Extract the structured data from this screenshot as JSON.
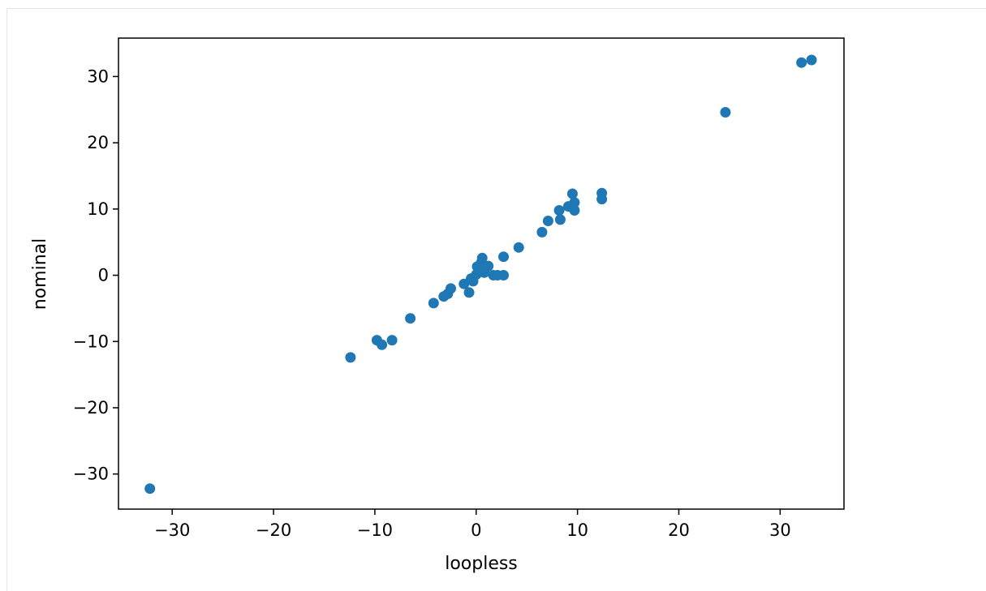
{
  "chart_data": {
    "type": "scatter",
    "title": "",
    "xlabel": "loopless",
    "ylabel": "nominal",
    "xlim": [
      -35.3,
      36.3
    ],
    "ylim": [
      -35.3,
      35.8
    ],
    "xticks": [
      -30,
      -20,
      -10,
      0,
      10,
      20,
      30
    ],
    "yticks": [
      -30,
      -20,
      -10,
      0,
      10,
      20,
      30
    ],
    "xtick_labels": [
      "−30",
      "−20",
      "−10",
      "0",
      "10",
      "20",
      "30"
    ],
    "ytick_labels": [
      "−30",
      "−20",
      "−10",
      "0",
      "10",
      "20",
      "30"
    ],
    "grid": false,
    "marker_color": "#1f77b4",
    "points": [
      {
        "x": -32.2,
        "y": -32.2
      },
      {
        "x": -12.4,
        "y": -12.4
      },
      {
        "x": -9.8,
        "y": -9.8
      },
      {
        "x": -9.3,
        "y": -10.5
      },
      {
        "x": -8.3,
        "y": -9.8
      },
      {
        "x": -6.5,
        "y": -6.5
      },
      {
        "x": -4.2,
        "y": -4.2
      },
      {
        "x": -3.2,
        "y": -3.2
      },
      {
        "x": -2.8,
        "y": -2.8
      },
      {
        "x": -2.5,
        "y": -2.0
      },
      {
        "x": -1.2,
        "y": -1.3
      },
      {
        "x": -0.7,
        "y": -2.6
      },
      {
        "x": -0.5,
        "y": -0.5
      },
      {
        "x": -0.3,
        "y": -0.9
      },
      {
        "x": 0.0,
        "y": 0.1
      },
      {
        "x": 0.1,
        "y": 1.3
      },
      {
        "x": 0.3,
        "y": 0.6
      },
      {
        "x": 0.5,
        "y": 1.9
      },
      {
        "x": 0.6,
        "y": 2.6
      },
      {
        "x": 0.8,
        "y": 0.4
      },
      {
        "x": 1.0,
        "y": 1.2
      },
      {
        "x": 1.2,
        "y": 1.4
      },
      {
        "x": 1.7,
        "y": 0.0
      },
      {
        "x": 2.1,
        "y": 0.0
      },
      {
        "x": 2.7,
        "y": 2.8
      },
      {
        "x": 2.7,
        "y": 0.0
      },
      {
        "x": 4.2,
        "y": 4.2
      },
      {
        "x": 6.5,
        "y": 6.5
      },
      {
        "x": 7.1,
        "y": 8.2
      },
      {
        "x": 8.2,
        "y": 9.8
      },
      {
        "x": 8.3,
        "y": 8.4
      },
      {
        "x": 9.1,
        "y": 10.4
      },
      {
        "x": 9.5,
        "y": 12.3
      },
      {
        "x": 9.7,
        "y": 11.0
      },
      {
        "x": 9.7,
        "y": 9.8
      },
      {
        "x": 12.4,
        "y": 12.4
      },
      {
        "x": 12.4,
        "y": 11.5
      },
      {
        "x": 24.6,
        "y": 24.6
      },
      {
        "x": 32.1,
        "y": 32.1
      },
      {
        "x": 33.1,
        "y": 32.5
      }
    ]
  }
}
